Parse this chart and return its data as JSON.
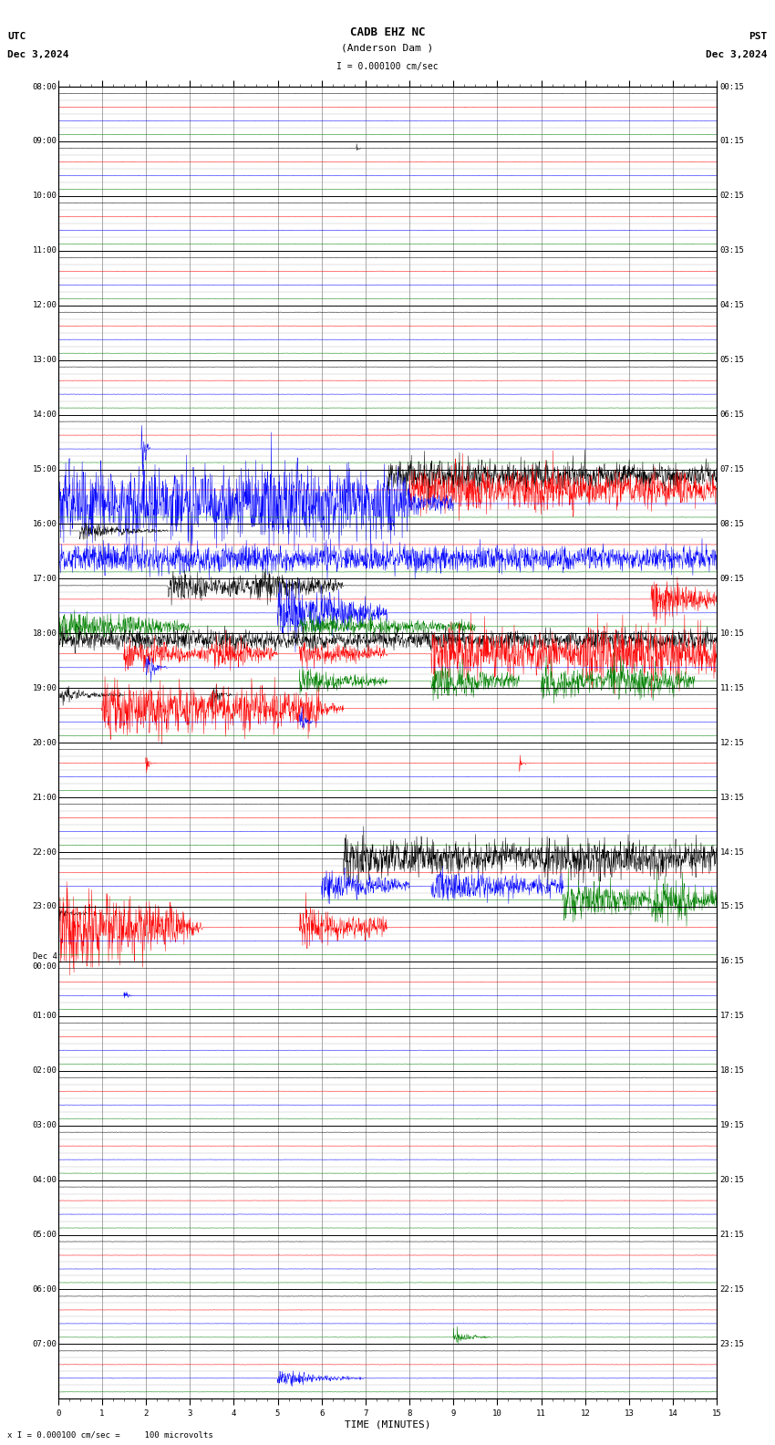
{
  "title_line1": "CADB EHZ NC",
  "title_line2": "(Anderson Dam )",
  "scale_text": "I = 0.000100 cm/sec",
  "utc_label": "UTC",
  "utc_date": "Dec 3,2024",
  "pst_label": "PST",
  "pst_date": "Dec 3,2024",
  "bottom_note": "x I = 0.000100 cm/sec =     100 microvolts",
  "xlabel": "TIME (MINUTES)",
  "left_times": [
    "08:00",
    "09:00",
    "10:00",
    "11:00",
    "12:00",
    "13:00",
    "14:00",
    "15:00",
    "16:00",
    "17:00",
    "18:00",
    "19:00",
    "20:00",
    "21:00",
    "22:00",
    "23:00",
    "Dec 4\n00:00",
    "01:00",
    "02:00",
    "03:00",
    "04:00",
    "05:00",
    "06:00",
    "07:00"
  ],
  "right_times": [
    "00:15",
    "01:15",
    "02:15",
    "03:15",
    "04:15",
    "05:15",
    "06:15",
    "07:15",
    "08:15",
    "09:15",
    "10:15",
    "11:15",
    "12:15",
    "13:15",
    "14:15",
    "15:15",
    "16:15",
    "17:15",
    "18:15",
    "19:15",
    "20:15",
    "21:15",
    "22:15",
    "23:15"
  ],
  "n_rows": 24,
  "n_traces_per_row": 4,
  "minutes": 15,
  "background_color": "#ffffff",
  "separator_color": "#000000",
  "vgrid_color": "#888888",
  "trace_colors": [
    "black",
    "red",
    "blue",
    "green"
  ],
  "line_width": 0.35,
  "noise_scale": 0.015,
  "title_fontsize": 9,
  "label_fontsize": 7,
  "tick_fontsize": 6.5
}
